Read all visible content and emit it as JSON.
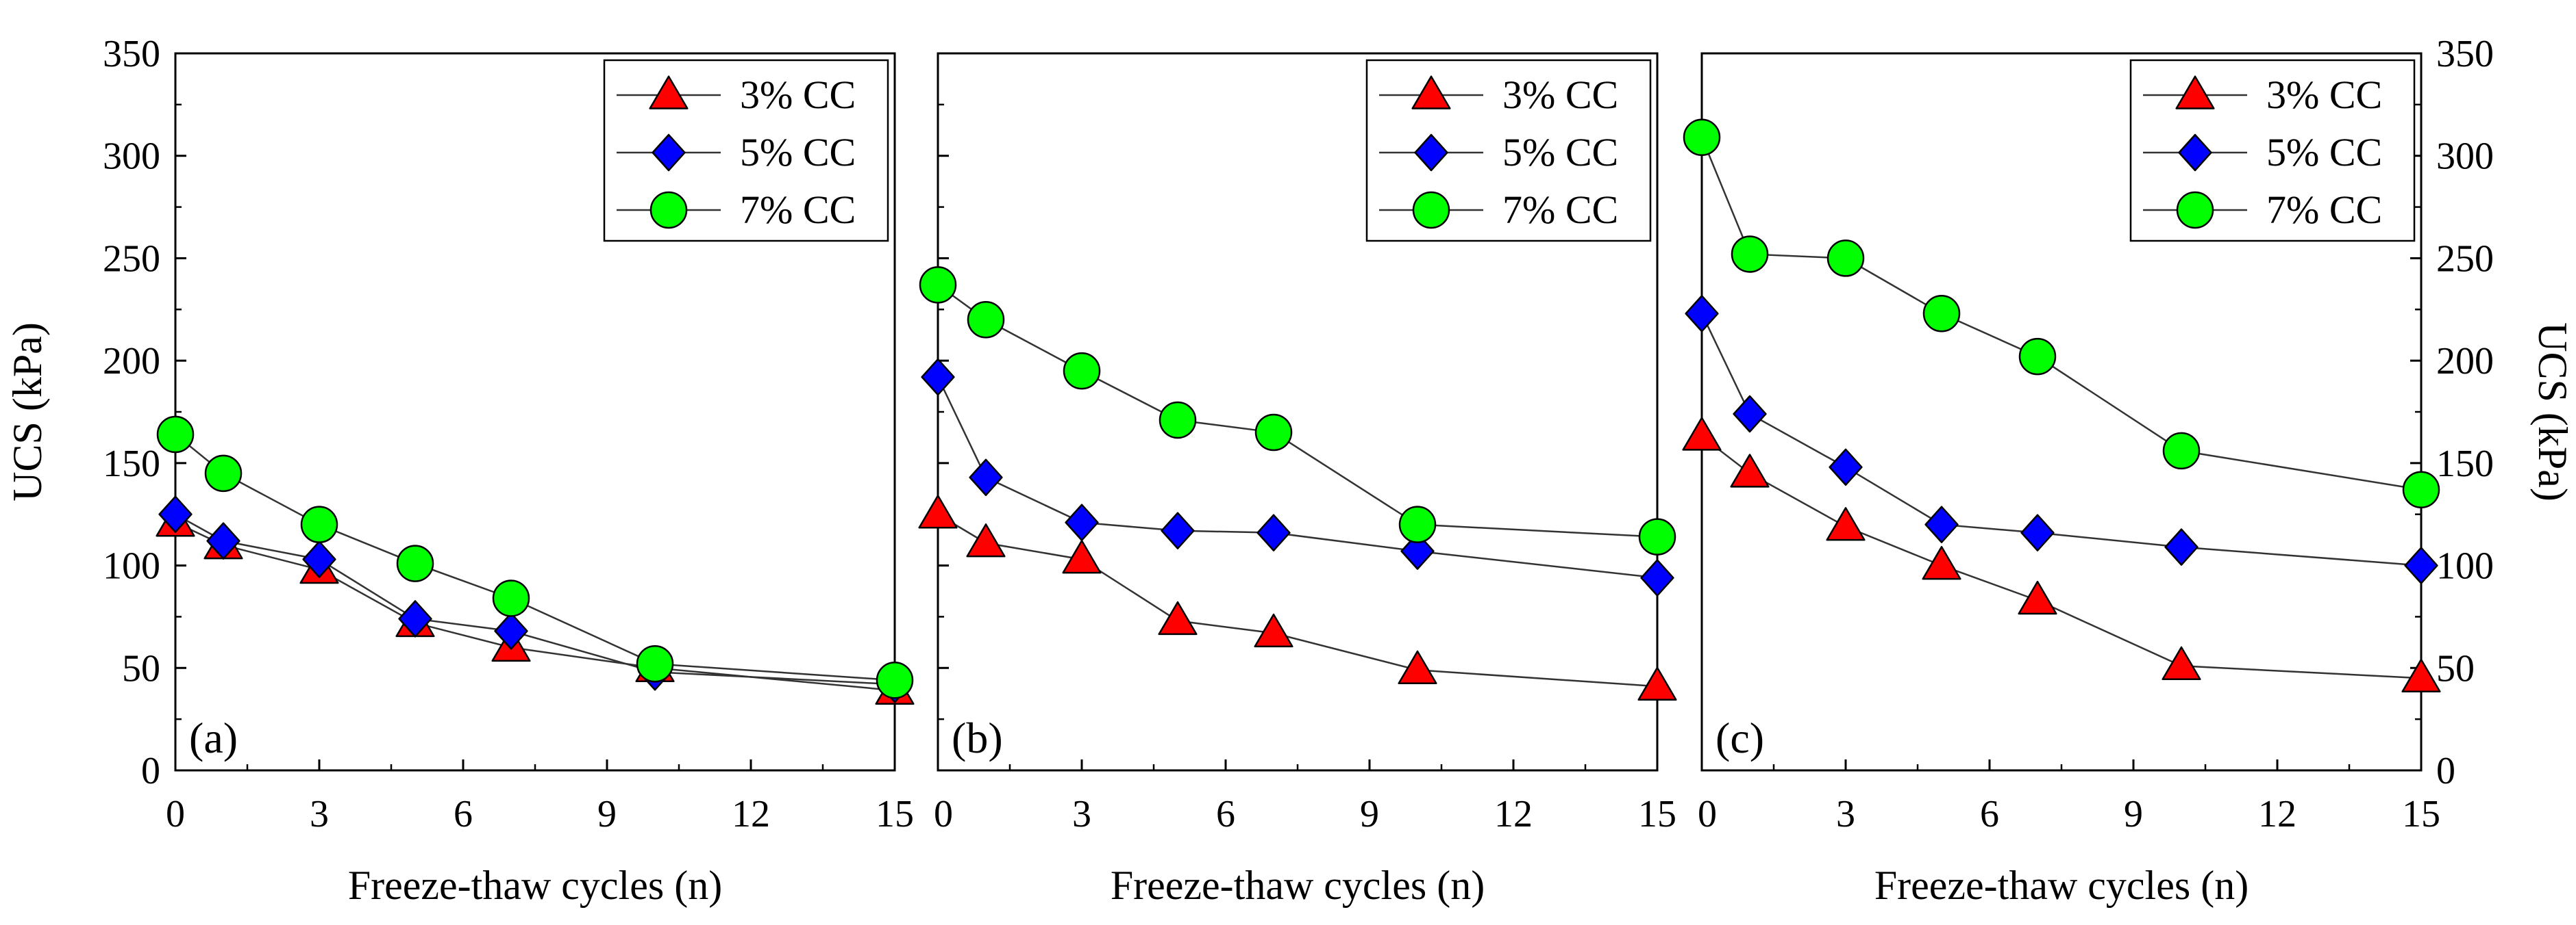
{
  "figure": {
    "x_axis_title": "Freeze-thaw cycles (n)",
    "y_axis_title": "UCS (kPa)"
  },
  "chart_data": [
    {
      "type": "line",
      "panel_label": "(a)",
      "xlabel": "Freeze-thaw cycles (n)",
      "ylabel": "UCS (kPa)",
      "xlim": [
        0,
        15
      ],
      "ylim": [
        0,
        350
      ],
      "xticks": [
        0,
        3,
        6,
        9,
        12,
        15
      ],
      "yticks": [
        0,
        50,
        100,
        150,
        200,
        250,
        300,
        350
      ],
      "legend_position": "top-right",
      "x": [
        0,
        1,
        3,
        5,
        7,
        10,
        15
      ],
      "series": [
        {
          "name": "3% CC",
          "marker": "triangle",
          "color": "#ff0000",
          "values": [
            121,
            110,
            98,
            72,
            60,
            50,
            39
          ]
        },
        {
          "name": "5% CC",
          "marker": "diamond",
          "color": "#0000ff",
          "values": [
            125,
            112,
            103,
            74,
            68,
            48,
            42
          ]
        },
        {
          "name": "7% CC",
          "marker": "circle",
          "color": "#00ff00",
          "values": [
            164,
            145,
            120,
            101,
            84,
            52,
            44
          ]
        }
      ]
    },
    {
      "type": "line",
      "panel_label": "(b)",
      "xlabel": "Freeze-thaw cycles (n)",
      "ylabel": "",
      "xlim": [
        0,
        15
      ],
      "ylim": [
        0,
        350
      ],
      "xticks": [
        0,
        3,
        6,
        9,
        12,
        15
      ],
      "yticks": [],
      "legend_position": "top-right",
      "x": [
        0,
        1,
        3,
        5,
        7,
        10,
        15
      ],
      "series": [
        {
          "name": "3% CC",
          "marker": "triangle",
          "color": "#ff0000",
          "values": [
            125,
            111,
            103,
            73,
            67,
            49,
            41
          ]
        },
        {
          "name": "5% CC",
          "marker": "diamond",
          "color": "#0000ff",
          "values": [
            192,
            143,
            121,
            117,
            116,
            107,
            94
          ]
        },
        {
          "name": "7% CC",
          "marker": "circle",
          "color": "#00ff00",
          "values": [
            237,
            220,
            195,
            171,
            165,
            120,
            114
          ]
        }
      ]
    },
    {
      "type": "line",
      "panel_label": "(c)",
      "xlabel": "Freeze-thaw cycles (n)",
      "ylabel": "UCS (kPa)",
      "xlim": [
        0,
        15
      ],
      "ylim": [
        0,
        350
      ],
      "xticks": [
        0,
        3,
        6,
        9,
        12,
        15
      ],
      "yticks": [
        0,
        50,
        100,
        150,
        200,
        250,
        300,
        350
      ],
      "y_axis_side": "right",
      "legend_position": "top-right",
      "x": [
        0,
        1,
        3,
        5,
        7,
        10,
        15
      ],
      "series": [
        {
          "name": "3% CC",
          "marker": "triangle",
          "color": "#ff0000",
          "values": [
            163,
            145,
            119,
            100,
            83,
            51,
            45
          ]
        },
        {
          "name": "5% CC",
          "marker": "diamond",
          "color": "#0000ff",
          "values": [
            223,
            174,
            148,
            120,
            116,
            109,
            100
          ]
        },
        {
          "name": "7% CC",
          "marker": "circle",
          "color": "#00ff00",
          "values": [
            309,
            252,
            250,
            223,
            202,
            156,
            137
          ]
        }
      ]
    }
  ]
}
